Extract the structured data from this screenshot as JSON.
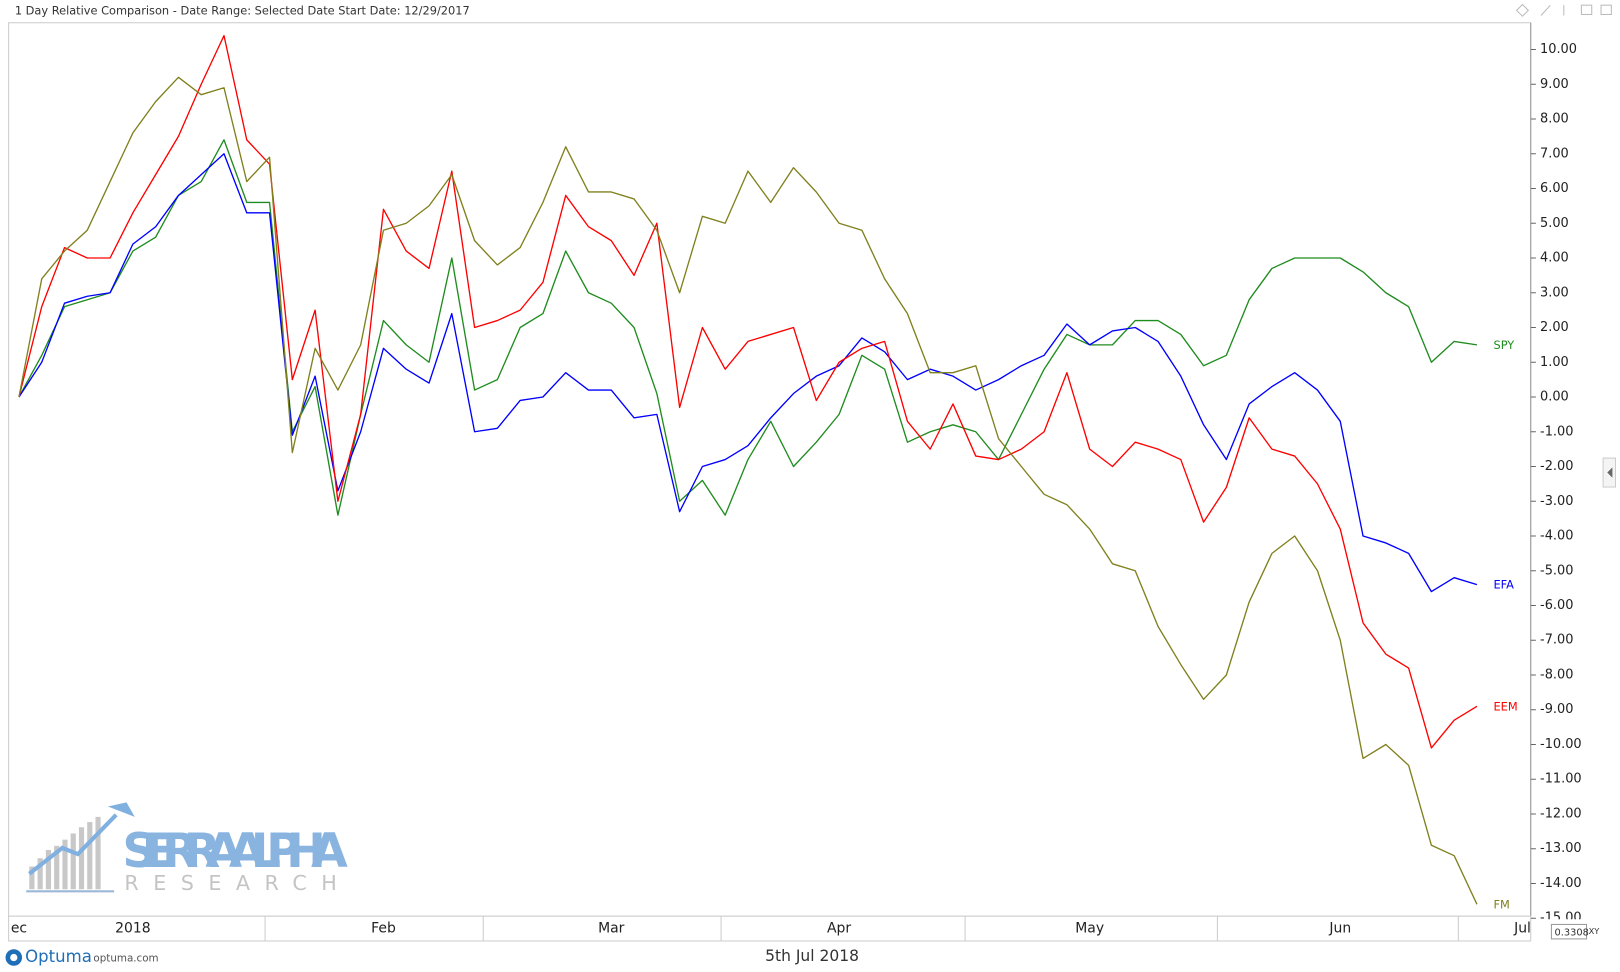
{
  "header": {
    "title": "1 Day Relative Comparison - Date Range: Selected Date  Start Date: 12/29/2017"
  },
  "chart_data": {
    "type": "line",
    "categories": [
      "ec",
      null,
      null,
      null,
      null,
      "2018",
      null,
      null,
      null,
      null,
      null,
      null,
      null,
      null,
      null,
      null,
      "Feb",
      null,
      null,
      null,
      null,
      null,
      null,
      null,
      null,
      null,
      "Mar",
      null,
      null,
      null,
      null,
      null,
      null,
      null,
      null,
      null,
      "Apr",
      null,
      null,
      null,
      null,
      null,
      null,
      null,
      null,
      null,
      null,
      "May",
      null,
      null,
      null,
      null,
      null,
      null,
      null,
      null,
      null,
      null,
      "Jun",
      null,
      null,
      null,
      null,
      null,
      null,
      null,
      "Jul"
    ],
    "series": [
      {
        "name": "SPY",
        "color": "#1f8c1f",
        "values": [
          0,
          1.2,
          2.6,
          2.8,
          3.0,
          4.2,
          4.6,
          5.8,
          6.2,
          7.4,
          5.6,
          5.6,
          -1.0,
          0.3,
          -3.4,
          -0.5,
          2.2,
          1.5,
          1.0,
          4.0,
          0.2,
          0.5,
          2.0,
          2.4,
          4.2,
          3.0,
          2.7,
          2.0,
          0.1,
          -3.0,
          -2.4,
          -3.4,
          -1.8,
          -0.7,
          -2.0,
          -1.3,
          -0.5,
          1.2,
          0.8,
          -1.3,
          -1.0,
          -0.8,
          -1.0,
          -1.8,
          -0.5,
          0.8,
          1.8,
          1.5,
          1.5,
          2.2,
          2.2,
          1.8,
          0.9,
          1.2,
          2.8,
          3.7,
          4.0,
          4.0,
          4.0,
          3.6,
          3.0,
          2.6,
          1.0,
          1.6,
          1.5,
          null,
          null
        ]
      },
      {
        "name": "EFA",
        "color": "#0000ff",
        "values": [
          0,
          1.0,
          2.7,
          2.9,
          3.0,
          4.4,
          4.9,
          5.8,
          6.4,
          7.0,
          5.3,
          5.3,
          -1.1,
          0.6,
          -2.7,
          -1.0,
          1.4,
          0.8,
          0.4,
          2.4,
          -1.0,
          -0.9,
          -0.1,
          0.0,
          0.7,
          0.2,
          0.2,
          -0.6,
          -0.5,
          -3.3,
          -2.0,
          -1.8,
          -1.4,
          -0.6,
          0.1,
          0.6,
          0.9,
          1.7,
          1.3,
          0.5,
          0.8,
          0.6,
          0.2,
          0.5,
          0.9,
          1.2,
          2.1,
          1.5,
          1.9,
          2.0,
          1.6,
          0.6,
          -0.8,
          -1.8,
          -0.2,
          0.3,
          0.7,
          0.2,
          -0.7,
          -4.0,
          -4.2,
          -4.5,
          -5.6,
          -5.2,
          -5.4,
          null,
          null
        ]
      },
      {
        "name": "EEM",
        "color": "#ff0000",
        "values": [
          0,
          2.6,
          4.3,
          4.0,
          4.0,
          5.3,
          6.4,
          7.5,
          9.0,
          10.4,
          7.4,
          6.7,
          0.5,
          2.5,
          -3.0,
          -0.5,
          5.4,
          4.2,
          3.7,
          6.5,
          2.0,
          2.2,
          2.5,
          3.3,
          5.8,
          4.9,
          4.5,
          3.5,
          5.0,
          -0.3,
          2.0,
          0.8,
          1.6,
          1.8,
          2.0,
          -0.1,
          1.0,
          1.4,
          1.6,
          -0.7,
          -1.5,
          -0.2,
          -1.7,
          -1.8,
          -1.5,
          -1.0,
          0.7,
          -1.5,
          -2.0,
          -1.3,
          -1.5,
          -1.8,
          -3.6,
          -2.6,
          -0.6,
          -1.5,
          -1.7,
          -2.5,
          -3.8,
          -6.5,
          -7.4,
          -7.8,
          -10.1,
          -9.3,
          -8.9,
          null,
          null
        ]
      },
      {
        "name": "FM",
        "color": "#80801e",
        "values": [
          0,
          3.4,
          4.2,
          4.8,
          6.2,
          7.6,
          8.5,
          9.2,
          8.7,
          8.9,
          6.2,
          6.9,
          -1.6,
          1.4,
          0.2,
          1.5,
          4.8,
          5.0,
          5.5,
          6.4,
          4.5,
          3.8,
          4.3,
          5.6,
          7.2,
          5.9,
          5.9,
          5.7,
          4.8,
          3.0,
          5.2,
          5.0,
          6.5,
          5.6,
          6.6,
          5.9,
          5.0,
          4.8,
          3.4,
          2.4,
          0.7,
          0.7,
          0.9,
          -1.2,
          -2.0,
          -2.8,
          -3.1,
          -3.8,
          -4.8,
          -5.0,
          -6.6,
          -7.7,
          -8.7,
          -8.0,
          -5.9,
          -4.5,
          -4.0,
          -5.0,
          -7.0,
          -10.4,
          -10.0,
          -10.6,
          -12.9,
          -13.2,
          -14.6,
          null,
          null
        ]
      }
    ],
    "ylim": [
      -14.94,
      10.77
    ],
    "yticks": [
      {
        "value": 10,
        "label": "10.00"
      },
      {
        "value": 9,
        "label": "9.00"
      },
      {
        "value": 8,
        "label": "8.00"
      },
      {
        "value": 7,
        "label": "7.00"
      },
      {
        "value": 6,
        "label": "6.00"
      },
      {
        "value": 5,
        "label": "5.00"
      },
      {
        "value": 4,
        "label": "4.00"
      },
      {
        "value": 3,
        "label": "3.00"
      },
      {
        "value": 2,
        "label": "2.00"
      },
      {
        "value": 1,
        "label": "1.00"
      },
      {
        "value": 0,
        "label": "0.00"
      },
      {
        "value": -1,
        "label": "-1.00"
      },
      {
        "value": -2,
        "label": "-2.00"
      },
      {
        "value": -3,
        "label": "-3.00"
      },
      {
        "value": -4,
        "label": "-4.00"
      },
      {
        "value": -5,
        "label": "-5.00"
      },
      {
        "value": -6,
        "label": "-6.00"
      },
      {
        "value": -7,
        "label": "-7.00"
      },
      {
        "value": -8,
        "label": "-8.00"
      },
      {
        "value": -9,
        "label": "-9.00"
      },
      {
        "value": -10,
        "label": "-10.00"
      },
      {
        "value": -11,
        "label": "-11.00"
      },
      {
        "value": -12,
        "label": "-12.00"
      },
      {
        "value": -13,
        "label": "-13.00"
      },
      {
        "value": -14,
        "label": "-14.00"
      },
      {
        "value": -15,
        "label": "-15.00"
      }
    ],
    "grid": false
  },
  "watermark": {
    "title": "SIERRA ALPHA",
    "subtitle": "RESEARCH"
  },
  "footer": {
    "brand": "Optuma",
    "site": "optuma.com",
    "date": "5th Jul 2018",
    "scale": "0.3308",
    "mode": "XY"
  }
}
